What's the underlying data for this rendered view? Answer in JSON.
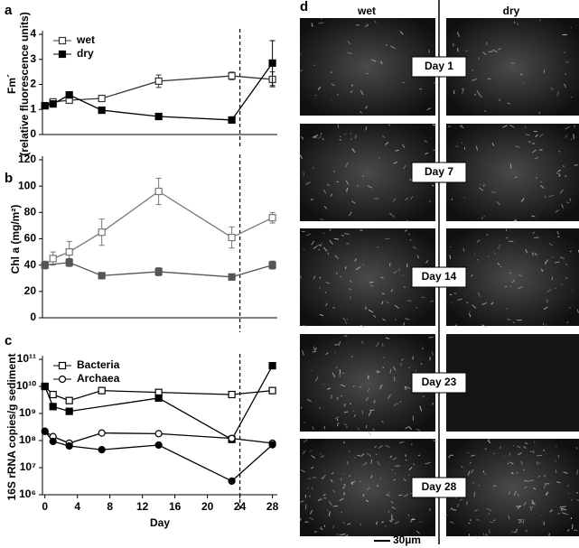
{
  "chart_data": [
    {
      "panel": "a",
      "type": "line",
      "ylabel": [
        "Fm´",
        "(relative fluorescence units)"
      ],
      "xlim": [
        -0.3,
        28.6
      ],
      "ylim": [
        0,
        4
      ],
      "yticks": [
        0,
        1,
        2,
        3,
        4
      ],
      "vline": 24,
      "legend": "upper left",
      "series": [
        {
          "name": "wet",
          "color": "#333333",
          "marker": "square",
          "filled": false,
          "x": [
            0,
            1,
            3,
            7,
            14,
            23,
            28
          ],
          "values": [
            1.15,
            1.3,
            1.37,
            1.44,
            2.13,
            2.34,
            2.2
          ],
          "errors": [
            0.1,
            0.1,
            0.08,
            0.08,
            0.25,
            0.15,
            0.3
          ]
        },
        {
          "name": "dry",
          "color": "#000000",
          "marker": "square",
          "filled": true,
          "x": [
            0,
            1,
            3,
            7,
            14,
            23,
            28
          ],
          "values": [
            1.15,
            1.22,
            1.58,
            0.97,
            0.72,
            0.58,
            2.85
          ],
          "errors": [
            0.1,
            0.08,
            0.08,
            0.06,
            0.06,
            0.05,
            0.9
          ]
        }
      ]
    },
    {
      "panel": "b",
      "type": "line",
      "ylabel": [
        "Chl a (mg/m²)"
      ],
      "xlim": [
        -0.3,
        28.6
      ],
      "ylim": [
        0,
        120
      ],
      "yticks": [
        0,
        20,
        40,
        60,
        80,
        100,
        120
      ],
      "vline": 24,
      "series": [
        {
          "color": "#777777",
          "marker": "square",
          "filled": false,
          "x": [
            0,
            1,
            3,
            7,
            14,
            23,
            28
          ],
          "values": [
            40,
            45,
            50,
            65,
            96,
            61,
            76
          ],
          "errors": [
            3,
            5,
            8,
            10,
            10,
            8,
            4
          ]
        },
        {
          "color": "#555555",
          "marker": "square",
          "filled": true,
          "x": [
            0,
            3,
            7,
            14,
            23,
            28
          ],
          "values": [
            40,
            42,
            32,
            35,
            31,
            40
          ],
          "errors": [
            2,
            3,
            2,
            3,
            2,
            3
          ]
        }
      ]
    },
    {
      "panel": "c",
      "type": "line",
      "ylabel": [
        "16S rRNA copies/g sediment"
      ],
      "xlabel": "Day",
      "log_y": true,
      "xlim": [
        -0.3,
        28.6
      ],
      "xticks": [
        0,
        4,
        8,
        12,
        16,
        20,
        24,
        28
      ],
      "ylim": [
        1000000,
        100000000000
      ],
      "yticks": [
        {
          "value": 1000000,
          "label": "10⁶"
        },
        {
          "value": 10000000,
          "label": "10⁷"
        },
        {
          "value": 100000000,
          "label": "10⁸"
        },
        {
          "value": 1000000000,
          "label": "10⁹"
        },
        {
          "value": 10000000000,
          "label": "10¹⁰"
        },
        {
          "value": 100000000000,
          "label": "10¹¹"
        }
      ],
      "vline": 24,
      "legend": "upper left",
      "series": [
        {
          "name": "Bacteria",
          "color": "#000000",
          "marker": "square",
          "filled": false,
          "x": [
            0,
            1,
            3,
            7,
            14,
            23,
            28
          ],
          "values": [
            10000000000,
            5000000000,
            3000000000,
            7000000000,
            6000000000,
            5000000000,
            7000000000
          ]
        },
        {
          "color": "#000000",
          "marker": "square",
          "filled": true,
          "x": [
            0,
            1,
            3,
            14,
            23,
            28
          ],
          "values": [
            10000000000,
            1800000000,
            1200000000,
            3700000000,
            110000000,
            58000000000
          ]
        },
        {
          "name": "Archaea",
          "color": "#000000",
          "marker": "circle",
          "filled": false,
          "x": [
            0,
            1,
            3,
            7,
            14,
            23,
            28
          ],
          "values": [
            220000000,
            140000000,
            80000000,
            190000000,
            180000000,
            120000000,
            80000000
          ]
        },
        {
          "color": "#000000",
          "marker": "circle",
          "filled": true,
          "x": [
            0,
            1,
            3,
            7,
            14,
            23,
            28
          ],
          "values": [
            220000000,
            93000000,
            63000000,
            46000000,
            68000000,
            3200000,
            70000000
          ]
        }
      ]
    }
  ],
  "micrographs": {
    "panel": "d",
    "columns": [
      "wet",
      "dry"
    ],
    "rows": [
      "Day 1",
      "Day 7",
      "Day 14",
      "Day 23",
      "Day 28"
    ],
    "scale_bar": "30µm"
  }
}
